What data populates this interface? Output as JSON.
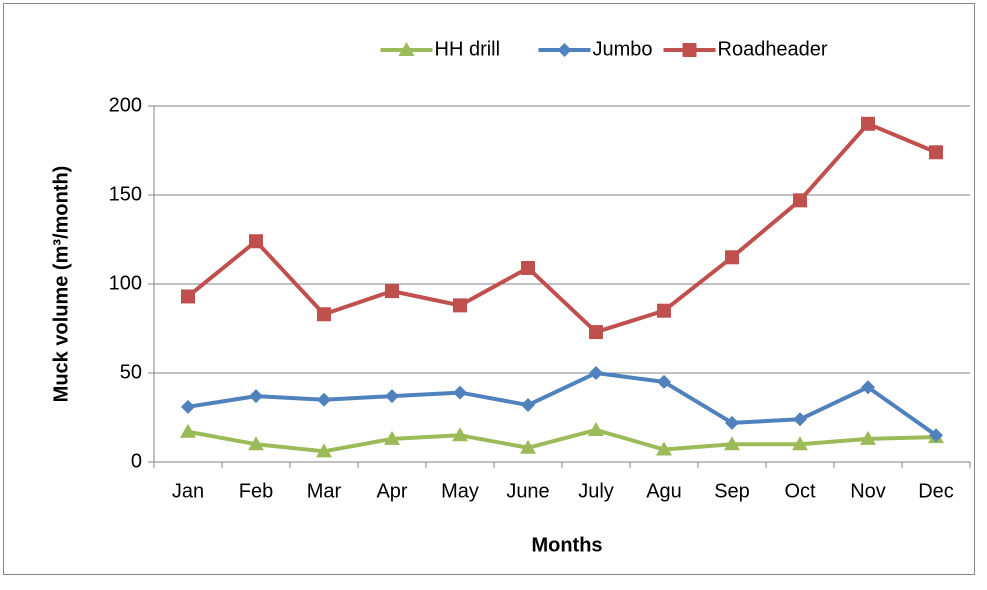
{
  "chart_data": {
    "type": "line",
    "x_label": "Months",
    "y_label": "Muck volume (m³/month)",
    "categories": [
      "Jan",
      "Feb",
      "Mar",
      "Apr",
      "May",
      "June",
      "July",
      "Agu",
      "Sep",
      "Oct",
      "Nov",
      "Dec"
    ],
    "series": [
      {
        "name": "HH drill",
        "color": "#9bbb59",
        "marker": "triangle",
        "values": [
          17,
          10,
          6,
          13,
          15,
          8,
          18,
          7,
          10,
          10,
          13,
          14
        ]
      },
      {
        "name": "Jumbo",
        "color": "#4f81bd",
        "marker": "diamond",
        "values": [
          31,
          37,
          35,
          37,
          39,
          32,
          50,
          45,
          22,
          24,
          42,
          15
        ]
      },
      {
        "name": "Roadheader",
        "color": "#c0504d",
        "marker": "square",
        "values": [
          93,
          124,
          83,
          96,
          88,
          109,
          73,
          85,
          115,
          147,
          190,
          174
        ]
      }
    ],
    "ylim": [
      0,
      200
    ],
    "yticks": [
      0,
      50,
      100,
      150,
      200
    ],
    "grid": true,
    "legend": "top"
  }
}
